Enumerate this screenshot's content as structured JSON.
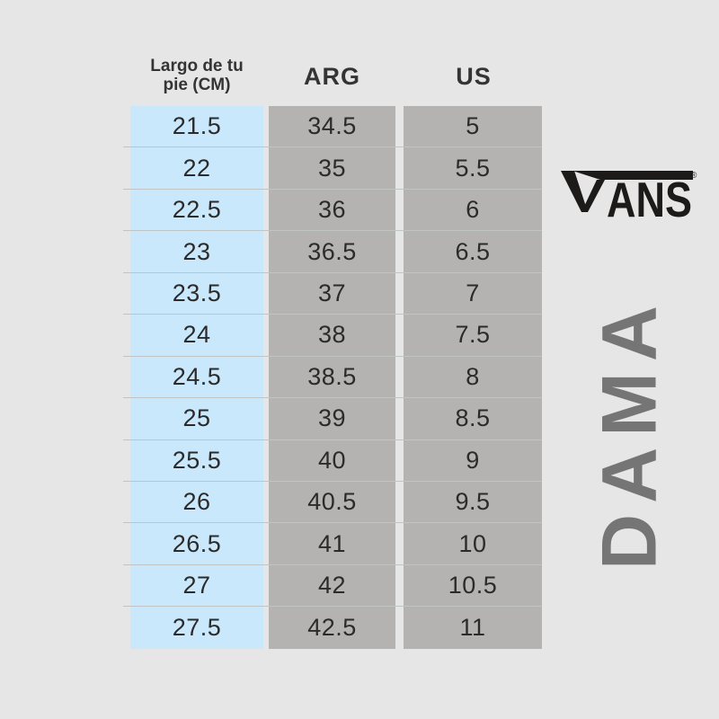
{
  "page": {
    "background_color": "#e7e6e6"
  },
  "brand": {
    "logo_text": "VANS",
    "registered_mark": "®",
    "logo_color": "#1d1b19"
  },
  "category_label": "DAMA",
  "colors": {
    "foot_column_bg": "#cae8fb",
    "size_columns_bg": "#b4b3b1",
    "row_separator": "rgba(96,106,112,0.28)",
    "cell_text": "#2b2b2b",
    "header_text": "#343434",
    "category_text": "#757575"
  },
  "size_chart": {
    "columns": [
      {
        "key": "foot_cm",
        "label": "Largo de tu pie (CM)",
        "label_lines": [
          "Largo de tu",
          "pie (CM)"
        ]
      },
      {
        "key": "arg",
        "label": "ARG"
      },
      {
        "key": "us",
        "label": "US"
      }
    ],
    "rows": [
      [
        "21.5",
        "34.5",
        "5"
      ],
      [
        "22",
        "35",
        "5.5"
      ],
      [
        "22.5",
        "36",
        "6"
      ],
      [
        "23",
        "36.5",
        "6.5"
      ],
      [
        "23.5",
        "37",
        "7"
      ],
      [
        "24",
        "38",
        "7.5"
      ],
      [
        "24.5",
        "38.5",
        "8"
      ],
      [
        "25",
        "39",
        "8.5"
      ],
      [
        "25.5",
        "40",
        "9"
      ],
      [
        "26",
        "40.5",
        "9.5"
      ],
      [
        "26.5",
        "41",
        "10"
      ],
      [
        "27",
        "42",
        "10.5"
      ],
      [
        "27.5",
        "42.5",
        "11"
      ]
    ]
  },
  "chart_data": {
    "type": "table",
    "title": "Vans women's shoe size conversion chart (DAMA)",
    "columns": [
      "Largo de tu pie (CM)",
      "ARG",
      "US"
    ],
    "foot_length_cm": [
      21.5,
      22,
      22.5,
      23,
      23.5,
      24,
      24.5,
      25,
      25.5,
      26,
      26.5,
      27,
      27.5
    ],
    "arg_sizes": [
      34.5,
      35,
      36,
      36.5,
      37,
      38,
      38.5,
      39,
      40,
      40.5,
      41,
      42,
      42.5
    ],
    "us_sizes": [
      5,
      5.5,
      6,
      6.5,
      7,
      7.5,
      8,
      8.5,
      9,
      9.5,
      10,
      10.5,
      11
    ]
  }
}
